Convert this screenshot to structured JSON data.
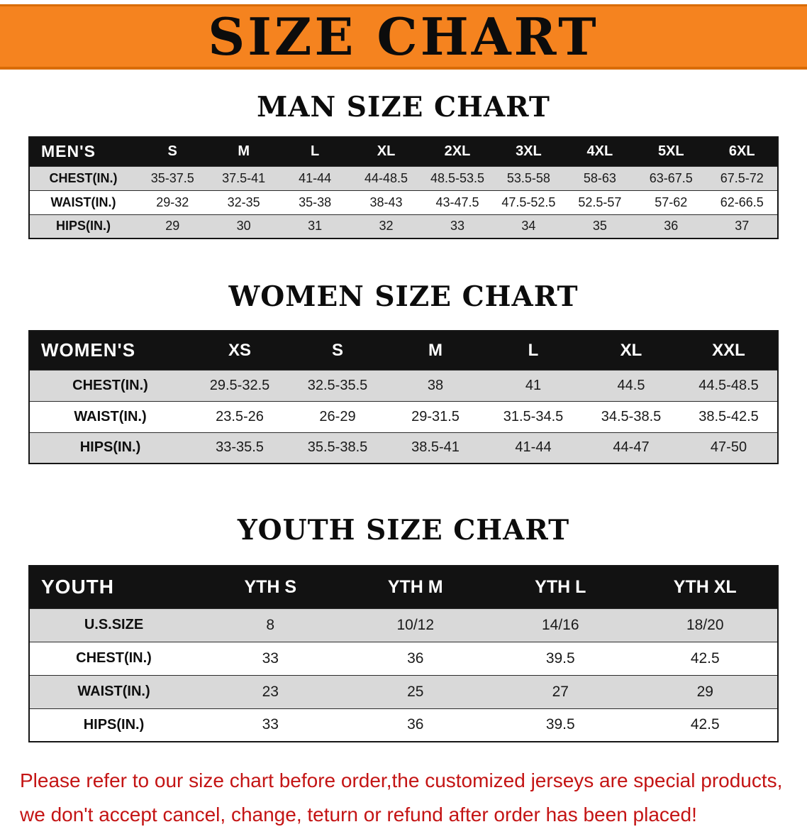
{
  "colors": {
    "banner_bg": "#f5831f",
    "banner_edge": "#d96c05",
    "header_bg": "#121212",
    "row_gray": "#d9d9d9",
    "notice_red": "#c41414"
  },
  "banner": {
    "title": "SIZE CHART"
  },
  "sections": [
    {
      "heading": "MAN SIZE CHART",
      "table": {
        "header": [
          "MEN'S",
          "S",
          "M",
          "L",
          "XL",
          "2XL",
          "3XL",
          "4XL",
          "5XL",
          "6XL"
        ],
        "rows": [
          [
            "CHEST(IN.)",
            "35-37.5",
            "37.5-41",
            "41-44",
            "44-48.5",
            "48.5-53.5",
            "53.5-58",
            "58-63",
            "63-67.5",
            "67.5-72"
          ],
          [
            "WAIST(IN.)",
            "29-32",
            "32-35",
            "35-38",
            "38-43",
            "43-47.5",
            "47.5-52.5",
            "52.5-57",
            "57-62",
            "62-66.5"
          ],
          [
            "HIPS(IN.)",
            "29",
            "30",
            "31",
            "32",
            "33",
            "34",
            "35",
            "36",
            "37"
          ]
        ]
      }
    },
    {
      "heading": "WOMEN SIZE CHART",
      "table": {
        "header": [
          "WOMEN'S",
          "XS",
          "S",
          "M",
          "L",
          "XL",
          "XXL"
        ],
        "rows": [
          [
            "CHEST(IN.)",
            "29.5-32.5",
            "32.5-35.5",
            "38",
            "41",
            "44.5",
            "44.5-48.5"
          ],
          [
            "WAIST(IN.)",
            "23.5-26",
            "26-29",
            "29-31.5",
            "31.5-34.5",
            "34.5-38.5",
            "38.5-42.5"
          ],
          [
            "HIPS(IN.)",
            "33-35.5",
            "35.5-38.5",
            "38.5-41",
            "41-44",
            "44-47",
            "47-50"
          ]
        ]
      }
    },
    {
      "heading": "YOUTH SIZE CHART",
      "table": {
        "header": [
          "YOUTH",
          "YTH S",
          "YTH M",
          "YTH L",
          "YTH XL"
        ],
        "rows": [
          [
            "U.S.SIZE",
            "8",
            "10/12",
            "14/16",
            "18/20"
          ],
          [
            "CHEST(IN.)",
            "33",
            "36",
            "39.5",
            "42.5"
          ],
          [
            "WAIST(IN.)",
            "23",
            "25",
            "27",
            "29"
          ],
          [
            "HIPS(IN.)",
            "33",
            "36",
            "39.5",
            "42.5"
          ]
        ]
      }
    }
  ],
  "notice": {
    "lines": [
      "Please refer to our size chart before order,the customized jerseys are special products,",
      "we don't accept cancel, change, teturn or refund after order has been placed!"
    ]
  }
}
